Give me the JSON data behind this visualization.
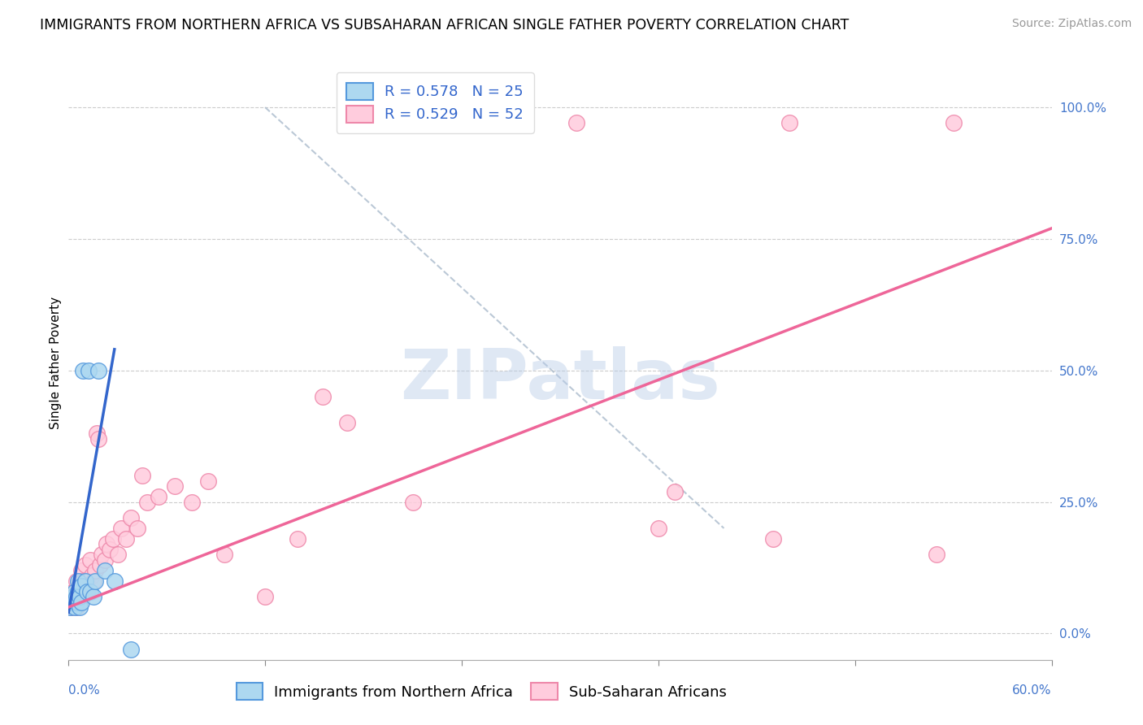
{
  "title": "IMMIGRANTS FROM NORTHERN AFRICA VS SUBSAHARAN AFRICAN SINGLE FATHER POVERTY CORRELATION CHART",
  "source": "Source: ZipAtlas.com",
  "ylabel": "Single Father Poverty",
  "ytick_labels": [
    "0.0%",
    "25.0%",
    "50.0%",
    "75.0%",
    "100.0%"
  ],
  "ytick_values": [
    0.0,
    0.25,
    0.5,
    0.75,
    1.0
  ],
  "xtick_label_left": "0.0%",
  "xtick_label_right": "60.0%",
  "xlim": [
    0.0,
    0.6
  ],
  "ylim": [
    -0.05,
    1.08
  ],
  "legend1_r": "R = 0.578",
  "legend1_n": "N = 25",
  "legend2_r": "R = 0.529",
  "legend2_n": "N = 52",
  "color_blue_fill": "#add8f0",
  "color_blue_edge": "#5599dd",
  "color_pink_fill": "#ffccdd",
  "color_pink_edge": "#ee88aa",
  "line_blue_color": "#3366cc",
  "line_pink_color": "#ee6699",
  "line_dash_color": "#aabbcc",
  "watermark": "ZIPatlas",
  "blue_scatter_x": [
    0.001,
    0.002,
    0.003,
    0.003,
    0.004,
    0.004,
    0.005,
    0.005,
    0.006,
    0.006,
    0.007,
    0.007,
    0.008,
    0.008,
    0.009,
    0.01,
    0.011,
    0.012,
    0.013,
    0.015,
    0.016,
    0.018,
    0.022,
    0.028,
    0.038
  ],
  "blue_scatter_y": [
    0.05,
    0.06,
    0.06,
    0.07,
    0.05,
    0.08,
    0.06,
    0.07,
    0.08,
    0.1,
    0.05,
    0.07,
    0.06,
    0.09,
    0.5,
    0.1,
    0.08,
    0.5,
    0.08,
    0.07,
    0.1,
    0.5,
    0.12,
    0.1,
    -0.03
  ],
  "pink_scatter_x": [
    0.001,
    0.002,
    0.003,
    0.003,
    0.004,
    0.005,
    0.005,
    0.006,
    0.007,
    0.007,
    0.008,
    0.008,
    0.009,
    0.01,
    0.011,
    0.012,
    0.013,
    0.014,
    0.015,
    0.016,
    0.017,
    0.018,
    0.019,
    0.02,
    0.022,
    0.023,
    0.025,
    0.027,
    0.03,
    0.032,
    0.035,
    0.038,
    0.042,
    0.045,
    0.048,
    0.055,
    0.065,
    0.075,
    0.085,
    0.095,
    0.12,
    0.14,
    0.155,
    0.17,
    0.21,
    0.31,
    0.36,
    0.37,
    0.43,
    0.44,
    0.53,
    0.54
  ],
  "pink_scatter_y": [
    0.06,
    0.05,
    0.06,
    0.08,
    0.07,
    0.1,
    0.05,
    0.08,
    0.06,
    0.1,
    0.09,
    0.12,
    0.1,
    0.13,
    0.1,
    0.08,
    0.14,
    0.11,
    0.1,
    0.12,
    0.38,
    0.37,
    0.13,
    0.15,
    0.14,
    0.17,
    0.16,
    0.18,
    0.15,
    0.2,
    0.18,
    0.22,
    0.2,
    0.3,
    0.25,
    0.26,
    0.28,
    0.25,
    0.29,
    0.15,
    0.07,
    0.18,
    0.45,
    0.4,
    0.25,
    0.97,
    0.2,
    0.27,
    0.18,
    0.97,
    0.15,
    0.97
  ],
  "blue_line_x": [
    0.0,
    0.028
  ],
  "blue_line_y": [
    0.04,
    0.54
  ],
  "pink_line_x": [
    0.0,
    0.6
  ],
  "pink_line_y": [
    0.05,
    0.77
  ],
  "dash_line_x": [
    0.12,
    0.4
  ],
  "dash_line_y": [
    1.0,
    0.2
  ],
  "title_fontsize": 12.5,
  "ylabel_fontsize": 11,
  "tick_fontsize": 11,
  "legend_fontsize": 13,
  "source_fontsize": 10
}
